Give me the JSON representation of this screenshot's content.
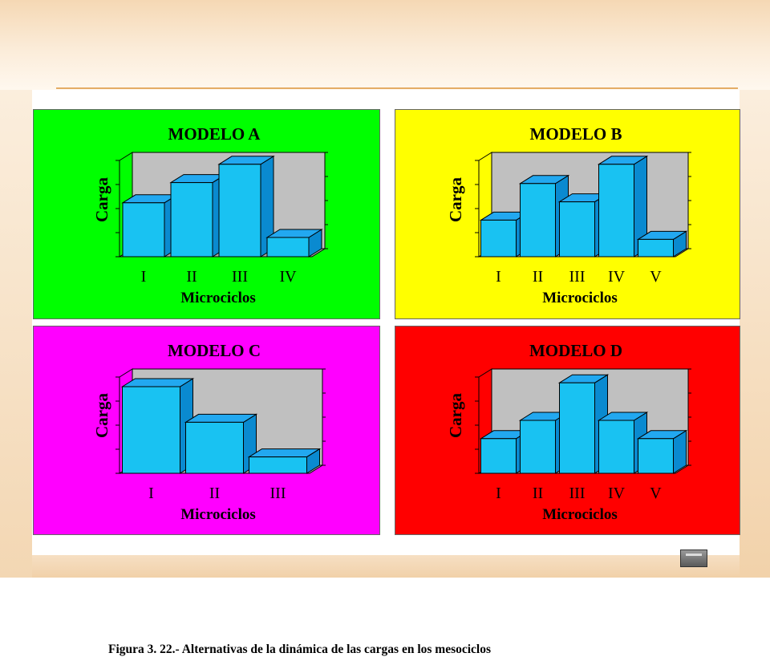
{
  "caption": "Figura 3. 22.- Alternativas de la dinámica de las cargas en los mesociclos",
  "colors": {
    "bar_front": "#19c2f2",
    "bar_side": "#0a8ad0",
    "bar_top": "#22a8f0",
    "plot_back": "#c0c0c0"
  },
  "chart_data": [
    {
      "type": "bar",
      "title": "MODELO A",
      "xlabel": "Microciclos",
      "ylabel": "Carga",
      "categories": [
        "I",
        "II",
        "III",
        "IV"
      ],
      "values": [
        56,
        77,
        96,
        20
      ],
      "ylim": [
        0,
        100
      ],
      "grid": false,
      "panel_color": "#00ff00"
    },
    {
      "type": "bar",
      "title": "MODELO B",
      "xlabel": "Microciclos",
      "ylabel": "Carga",
      "categories": [
        "I",
        "II",
        "III",
        "IV",
        "V"
      ],
      "values": [
        38,
        76,
        57,
        96,
        18
      ],
      "ylim": [
        0,
        100
      ],
      "grid": false,
      "panel_color": "#ffff00"
    },
    {
      "type": "bar",
      "title": "MODELO C",
      "xlabel": "Microciclos",
      "ylabel": "Carga",
      "categories": [
        "I",
        "II",
        "III"
      ],
      "values": [
        90,
        53,
        17
      ],
      "ylim": [
        0,
        100
      ],
      "grid": false,
      "panel_color": "#ff00ff"
    },
    {
      "type": "bar",
      "title": "MODELO D",
      "xlabel": "Microciclos",
      "ylabel": "Carga",
      "categories": [
        "I",
        "II",
        "III",
        "IV",
        "V"
      ],
      "values": [
        36,
        55,
        94,
        55,
        36
      ],
      "ylim": [
        0,
        100
      ],
      "grid": false,
      "panel_color": "#ff0000"
    }
  ]
}
